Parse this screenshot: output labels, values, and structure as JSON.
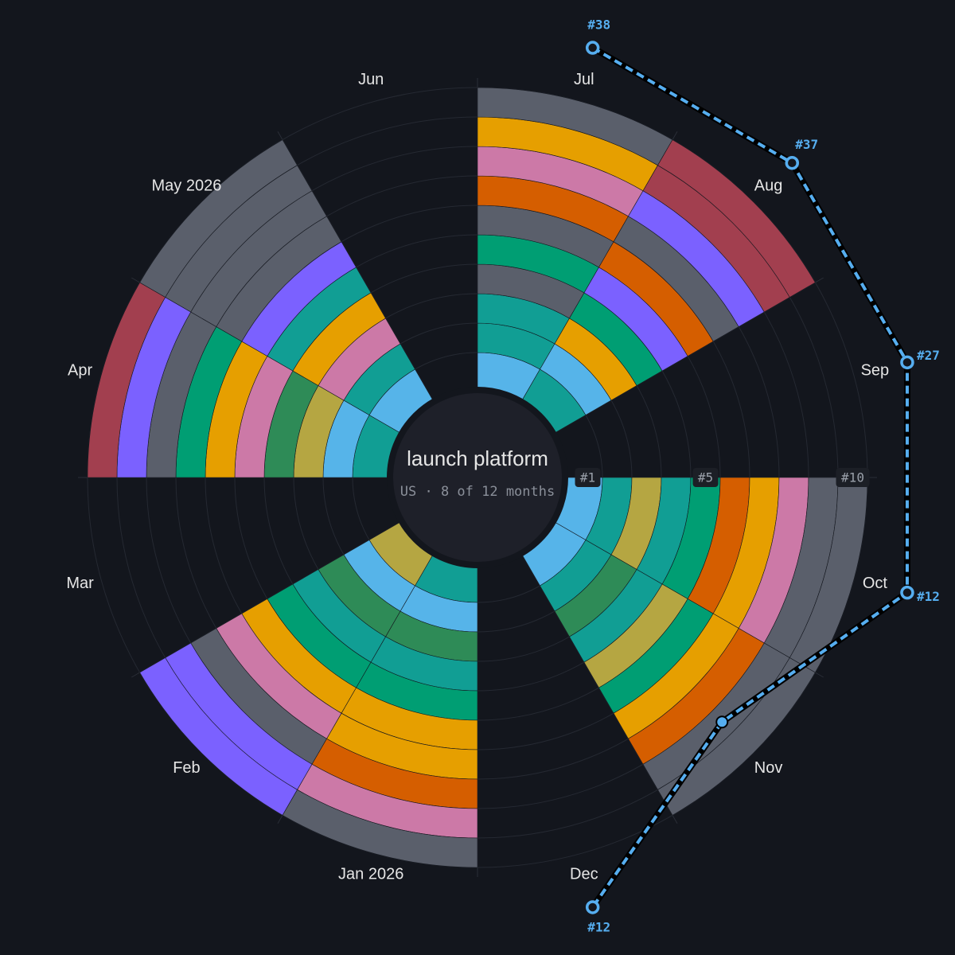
{
  "chart_data": {
    "type": "radial-rank",
    "title": "launch platform",
    "subtitle": "US · 8 of 12 months",
    "months": [
      "Jul",
      "Aug",
      "Sep",
      "Oct",
      "Nov",
      "Dec",
      "Jan 2026",
      "Feb",
      "Mar",
      "Apr",
      "May 2026",
      "Jun"
    ],
    "rings": [
      [
        "#56b4e9",
        "#119e94",
        "#119e94",
        "#5a5f6b",
        "#009e73",
        "#5a5f6b",
        "#d55e00",
        "#cc79a7",
        "#e69f00",
        "#5a5f6b"
      ],
      [
        "#119e94",
        "#56b4e9",
        "#e69f00",
        "#009e73",
        "#7b61ff",
        "#d55e00",
        "#5a5f6b",
        "#7b61ff",
        "#a23f4f",
        "#a23f4f"
      ],
      [],
      [
        "#56b4e9",
        "#119e94",
        "#b5a642",
        "#119e94",
        "#009e73",
        "#d55e00",
        "#e69f00",
        "#cc79a7",
        "#5a5f6b",
        "#5a5f6b"
      ],
      [
        "#56b4e9",
        "#119e94",
        "#2e8b57",
        "#119e94",
        "#b5a642",
        "#009e73",
        "#e69f00",
        "#d55e00",
        "#5a5f6b",
        "#5a5f6b"
      ],
      [],
      [
        "#119e94",
        "#56b4e9",
        "#2e8b57",
        "#119e94",
        "#009e73",
        "#e69f00",
        "#e69f00",
        "#d55e00",
        "#cc79a7",
        "#5a5f6b"
      ],
      [
        "#b5a642",
        "#56b4e9",
        "#2e8b57",
        "#119e94",
        "#009e73",
        "#e69f00",
        "#cc79a7",
        "#5a5f6b",
        "#7b61ff",
        "#7b61ff"
      ],
      [],
      [
        "#119e94",
        "#56b4e9",
        "#b5a642",
        "#2e8b57",
        "#cc79a7",
        "#e69f00",
        "#009e73",
        "#5a5f6b",
        "#7b61ff",
        "#a23f4f"
      ],
      [
        "#56b4e9",
        "#119e94",
        "#cc79a7",
        "#e69f00",
        "#119e94",
        "#7b61ff",
        "#5a5f6b",
        "#5a5f6b",
        "#5a5f6b",
        "#5a5f6b"
      ],
      []
    ],
    "rank_ticks": [
      {
        "value": 1,
        "label": "#1"
      },
      {
        "value": 5,
        "label": "#5"
      },
      {
        "value": 10,
        "label": "#10"
      }
    ],
    "rank_line": {
      "color": "#56aef0",
      "month_index": [
        0,
        1,
        2,
        3,
        4,
        5
      ],
      "values": [
        38,
        37,
        27,
        12,
        9,
        12
      ],
      "value_labels": [
        "#38",
        "#37",
        "#27",
        "#12",
        null,
        "#12"
      ]
    }
  }
}
